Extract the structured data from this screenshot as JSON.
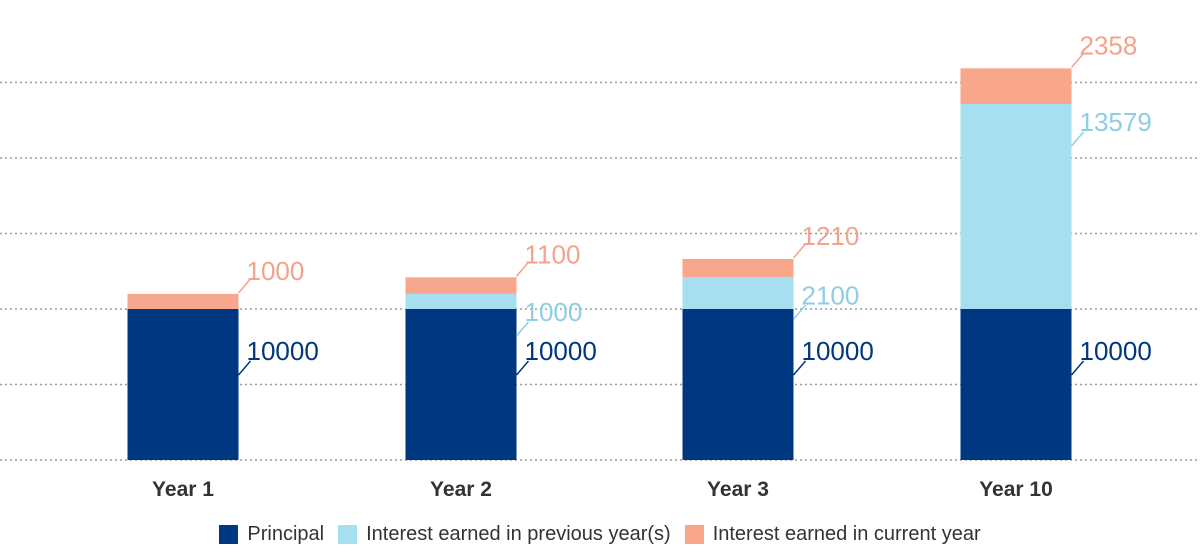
{
  "chart_data": {
    "type": "bar",
    "stacked": true,
    "categories": [
      "Year 1",
      "Year 2",
      "Year 3",
      "Year 10"
    ],
    "series": [
      {
        "name": "Principal",
        "values": [
          10000,
          10000,
          10000,
          10000
        ],
        "color": "#003781"
      },
      {
        "name": "Interest earned in previous year(s)",
        "values": [
          0,
          1000,
          2100,
          13579
        ],
        "color": "#a5dff0"
      },
      {
        "name": "Interest earned in current year",
        "values": [
          1000,
          1100,
          1210,
          2358
        ],
        "color": "#f8a68c"
      }
    ],
    "data_labels": [
      [
        "10000",
        "10000",
        "10000",
        "10000"
      ],
      [
        "",
        "1000",
        "2100",
        "13579"
      ],
      [
        "1000",
        "1100",
        "1210",
        "2358"
      ]
    ],
    "label_colors": [
      "#003781",
      "#8fcde3",
      "#f4a28c"
    ],
    "ylim": [
      0,
      26000
    ],
    "grid": true,
    "grid_style": "dotted",
    "legend_position": "bottom"
  }
}
